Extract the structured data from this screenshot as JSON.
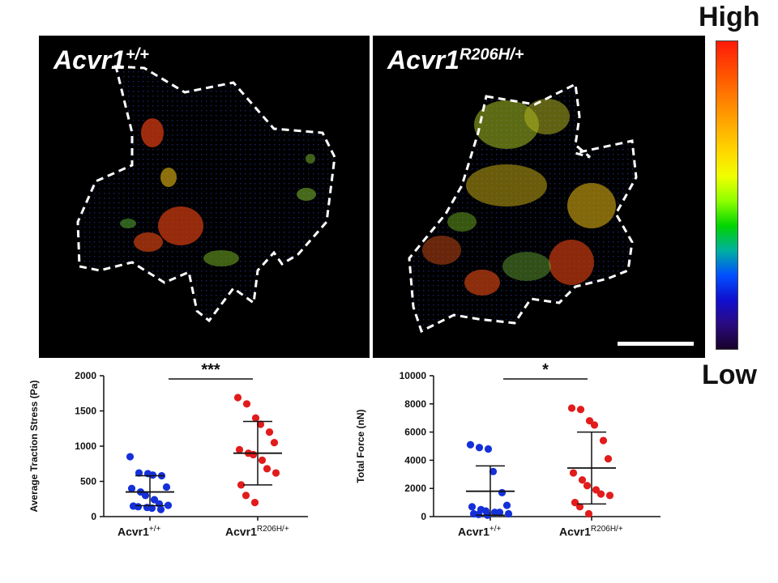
{
  "panels": {
    "left": {
      "genotype_base": "Acvr1",
      "genotype_sup": "+/+"
    },
    "right": {
      "genotype_base": "Acvr1",
      "genotype_sup": "R206H/+"
    }
  },
  "colorbar": {
    "high_label": "High",
    "low_label": "Low",
    "colors": [
      "#ff1a0a",
      "#ff9a00",
      "#f0ff00",
      "#00d400",
      "#0050ff",
      "#18022a"
    ]
  },
  "chart_data": [
    {
      "type": "scatter",
      "ylabel": "Average Traction Stress (Pa)",
      "ylim": [
        0,
        2000
      ],
      "yticks": [
        "0",
        "500",
        "1000",
        "1500",
        "2000"
      ],
      "significance": "***",
      "categories": [
        {
          "base": "Acvr1",
          "sup": "+/+"
        },
        {
          "base": "Acvr1",
          "sup": "R206H/+"
        }
      ],
      "series": [
        {
          "color": "#1530d8",
          "mean": 350,
          "sd_low": 155,
          "sd_high": 580,
          "values": [
            850,
            620,
            610,
            590,
            580,
            420,
            400,
            350,
            300,
            240,
            180,
            160,
            150,
            140,
            130,
            120,
            100
          ]
        },
        {
          "color": "#e21b1b",
          "mean": 900,
          "sd_low": 450,
          "sd_high": 1350,
          "values": [
            1690,
            1600,
            1400,
            1310,
            1200,
            1050,
            950,
            900,
            880,
            800,
            680,
            620,
            450,
            300,
            200
          ]
        }
      ]
    },
    {
      "type": "scatter",
      "ylabel": "Total Force (nN)",
      "ylim": [
        0,
        10000
      ],
      "yticks": [
        "0",
        "2000",
        "4000",
        "6000",
        "8000",
        "10000"
      ],
      "significance": "*",
      "categories": [
        {
          "base": "Acvr1",
          "sup": "+/+"
        },
        {
          "base": "Acvr1",
          "sup": "R206H/+"
        }
      ],
      "series": [
        {
          "color": "#1530d8",
          "mean": 1800,
          "sd_low": 100,
          "sd_high": 3600,
          "values": [
            5100,
            4900,
            4800,
            3200,
            1700,
            800,
            700,
            500,
            400,
            300,
            300,
            200,
            200,
            150,
            100
          ]
        },
        {
          "color": "#e21b1b",
          "mean": 3450,
          "sd_low": 900,
          "sd_high": 6000,
          "values": [
            7700,
            7600,
            6800,
            6500,
            5400,
            4100,
            3100,
            2600,
            2200,
            1900,
            1600,
            1500,
            1000,
            700,
            200
          ]
        }
      ]
    }
  ]
}
